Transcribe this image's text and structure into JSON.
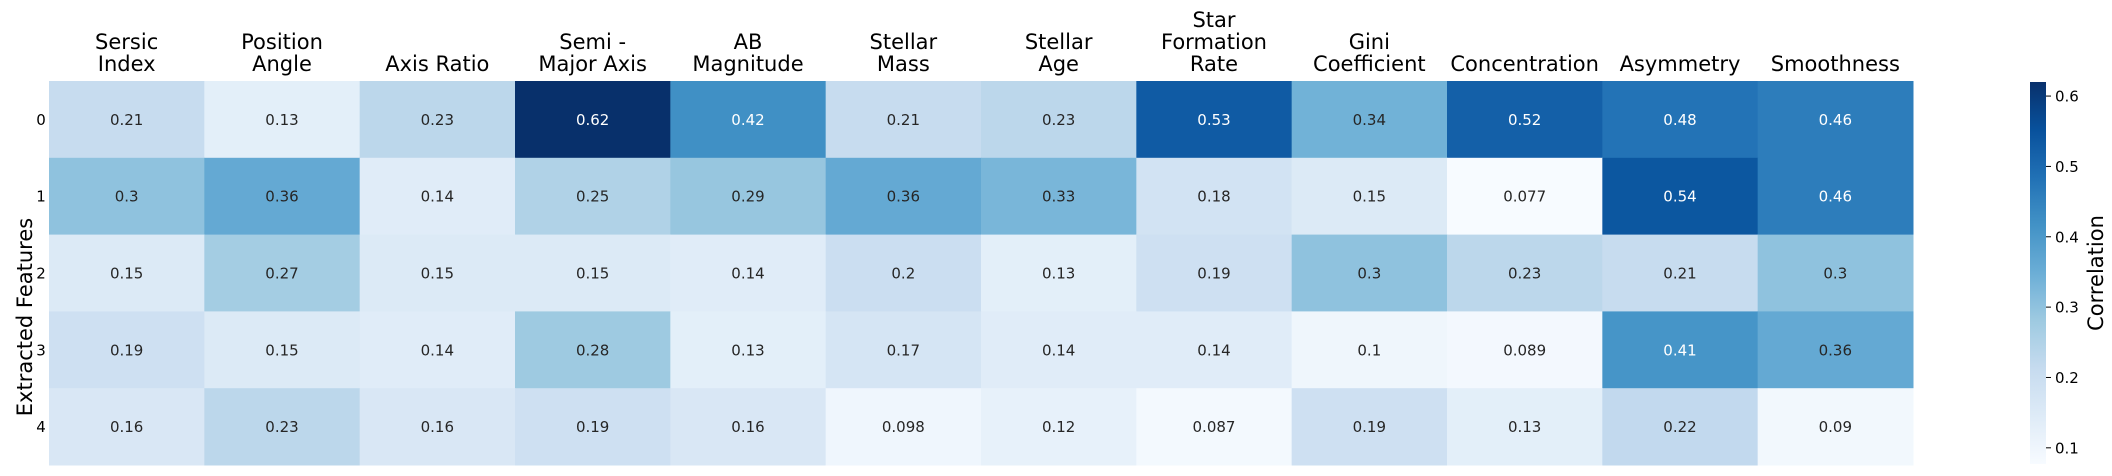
{
  "chart_data": {
    "type": "heatmap",
    "columns": [
      [
        "Sersic",
        "Index"
      ],
      [
        "Position",
        "Angle"
      ],
      [
        "Axis Ratio"
      ],
      [
        "Semi -",
        "Major Axis"
      ],
      [
        "AB",
        "Magnitude"
      ],
      [
        "Stellar",
        "Mass"
      ],
      [
        "Stellar",
        "Age"
      ],
      [
        "Star",
        "Formation",
        "Rate"
      ],
      [
        "Gini",
        "Coefficient"
      ],
      [
        "Concentration"
      ],
      [
        "Asymmetry"
      ],
      [
        "Smoothness"
      ]
    ],
    "rows": [
      "0",
      "1",
      "2",
      "3",
      "4"
    ],
    "ylabel": "Extracted Features",
    "values": [
      [
        0.21,
        0.13,
        0.23,
        0.62,
        0.42,
        0.21,
        0.23,
        0.53,
        0.34,
        0.52,
        0.48,
        0.46
      ],
      [
        0.3,
        0.36,
        0.14,
        0.25,
        0.29,
        0.36,
        0.33,
        0.18,
        0.15,
        0.077,
        0.54,
        0.46
      ],
      [
        0.15,
        0.27,
        0.15,
        0.15,
        0.14,
        0.2,
        0.13,
        0.19,
        0.3,
        0.23,
        0.21,
        0.3
      ],
      [
        0.19,
        0.15,
        0.14,
        0.28,
        0.13,
        0.17,
        0.14,
        0.14,
        0.1,
        0.089,
        0.41,
        0.36
      ],
      [
        0.16,
        0.23,
        0.16,
        0.19,
        0.16,
        0.098,
        0.12,
        0.087,
        0.19,
        0.13,
        0.22,
        0.09
      ]
    ],
    "colorbar": {
      "label": "Correlation",
      "range": [
        0.077,
        0.62
      ],
      "ticks": [
        0.1,
        0.2,
        0.3,
        0.4,
        0.5,
        0.6
      ],
      "tick_labels": [
        "0.1",
        "0.2",
        "0.3",
        "0.4",
        "0.5",
        "0.6"
      ],
      "colormap": "Blues"
    }
  }
}
